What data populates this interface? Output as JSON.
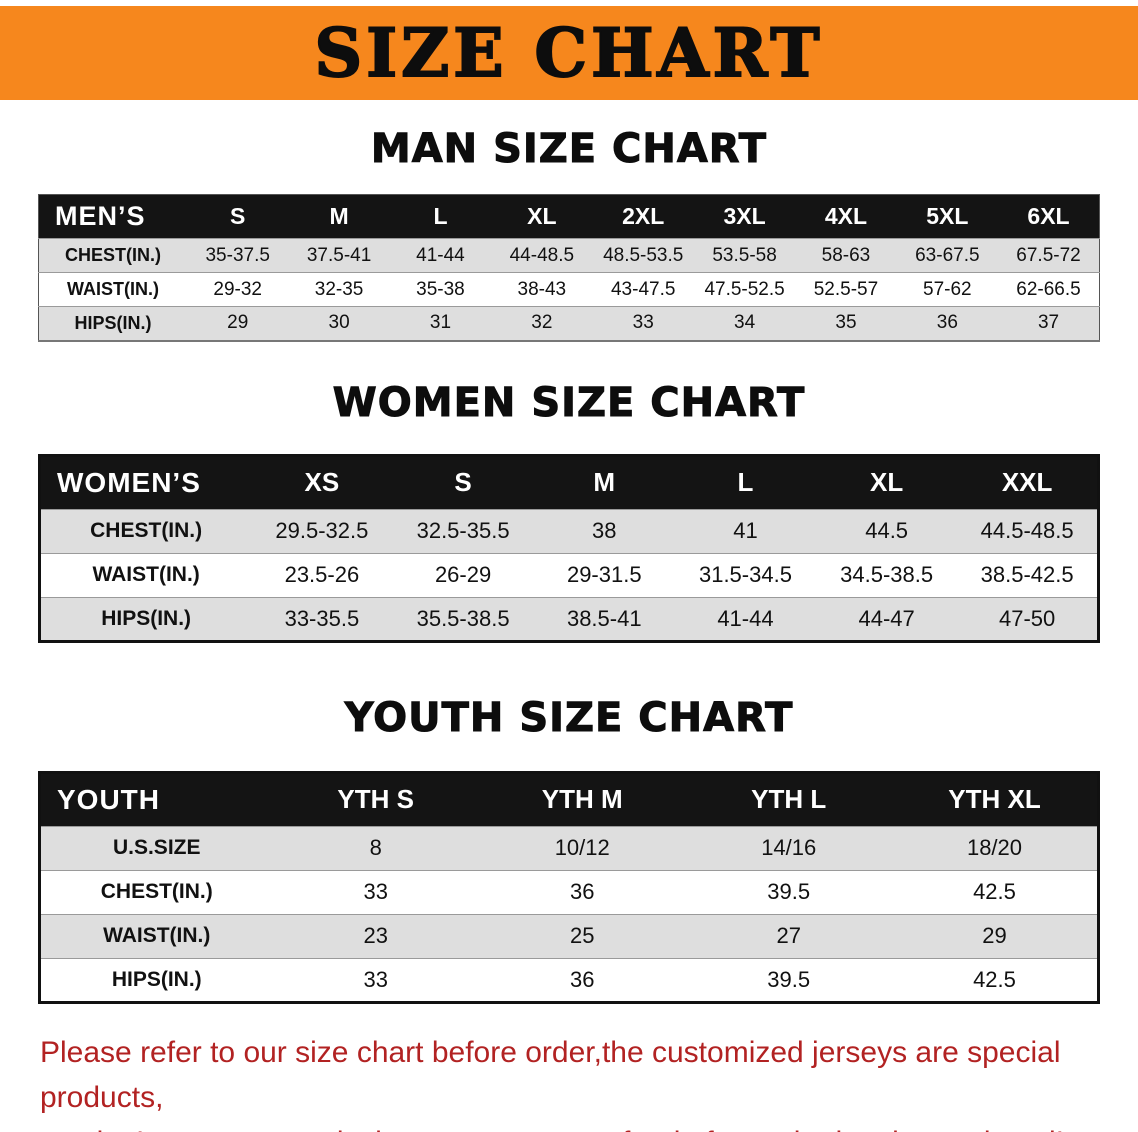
{
  "banner": {
    "title": "SIZE CHART",
    "bg_color": "#F6871D"
  },
  "sections": [
    {
      "heading": "MAN SIZE CHART",
      "table": {
        "corner_label": "MEN’S",
        "columns": [
          "S",
          "M",
          "L",
          "XL",
          "2XL",
          "3XL",
          "4XL",
          "5XL",
          "6XL"
        ],
        "rows": [
          {
            "label": "CHEST(IN.)",
            "values": [
              "35-37.5",
              "37.5-41",
              "41-44",
              "44-48.5",
              "48.5-53.5",
              "53.5-58",
              "58-63",
              "63-67.5",
              "67.5-72"
            ]
          },
          {
            "label": "WAIST(IN.)",
            "values": [
              "29-32",
              "32-35",
              "35-38",
              "38-43",
              "43-47.5",
              "47.5-52.5",
              "52.5-57",
              "57-62",
              "62-66.5"
            ]
          },
          {
            "label": "HIPS(IN.)",
            "values": [
              "29",
              "30",
              "31",
              "32",
              "33",
              "34",
              "35",
              "36",
              "37"
            ]
          }
        ]
      }
    },
    {
      "heading": "WOMEN SIZE CHART",
      "table": {
        "corner_label": "WOMEN’S",
        "columns": [
          "XS",
          "S",
          "M",
          "L",
          "XL",
          "XXL"
        ],
        "rows": [
          {
            "label": "CHEST(IN.)",
            "values": [
              "29.5-32.5",
              "32.5-35.5",
              "38",
              "41",
              "44.5",
              "44.5-48.5"
            ]
          },
          {
            "label": "WAIST(IN.)",
            "values": [
              "23.5-26",
              "26-29",
              "29-31.5",
              "31.5-34.5",
              "34.5-38.5",
              "38.5-42.5"
            ]
          },
          {
            "label": "HIPS(IN.)",
            "values": [
              "33-35.5",
              "35.5-38.5",
              "38.5-41",
              "41-44",
              "44-47",
              "47-50"
            ]
          }
        ]
      }
    },
    {
      "heading": "YOUTH SIZE CHART",
      "table": {
        "corner_label": "YOUTH",
        "columns": [
          "YTH S",
          "YTH M",
          "YTH L",
          "YTH XL"
        ],
        "rows": [
          {
            "label": "U.S.SIZE",
            "values": [
              "8",
              "10/12",
              "14/16",
              "18/20"
            ]
          },
          {
            "label": "CHEST(IN.)",
            "values": [
              "33",
              "36",
              "39.5",
              "42.5"
            ]
          },
          {
            "label": "WAIST(IN.)",
            "values": [
              "23",
              "25",
              "27",
              "29"
            ]
          },
          {
            "label": "HIPS(IN.)",
            "values": [
              "33",
              "36",
              "39.5",
              "42.5"
            ]
          }
        ]
      }
    }
  ],
  "footer": {
    "text_color": "#b22222",
    "lines": [
      "Please refer to our size chart before order,the customized jerseys are special products,",
      "we don’t accept cancel, change, teturn or refund after order has been placed!"
    ]
  }
}
